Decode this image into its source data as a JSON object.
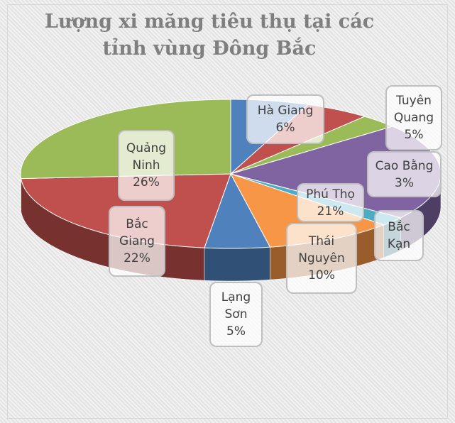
{
  "chart_data": {
    "type": "pie",
    "title": "Lượng xi măng tiêu thụ tại các tỉnh vùng Đông Bắc",
    "categories": [
      "Hà Giang",
      "Tuyên Quang",
      "Cao Bằng",
      "Phú Thọ",
      "Bắc Kạn",
      "Thái Nguyên",
      "Lạng Sơn",
      "Bắc Giang",
      "Quảng Ninh"
    ],
    "values": [
      6,
      5,
      3,
      21,
      2,
      10,
      5,
      22,
      26
    ],
    "value_labels": [
      "6%",
      "5%",
      "3%",
      "21%",
      null,
      "10%",
      "5%",
      "22%",
      "26%"
    ],
    "colors": [
      "#4f81bd",
      "#c0504d",
      "#9bbb59",
      "#8064a2",
      "#4bacc6",
      "#f79646",
      "#4f81bd",
      "#c0504d",
      "#9bbb59"
    ]
  }
}
